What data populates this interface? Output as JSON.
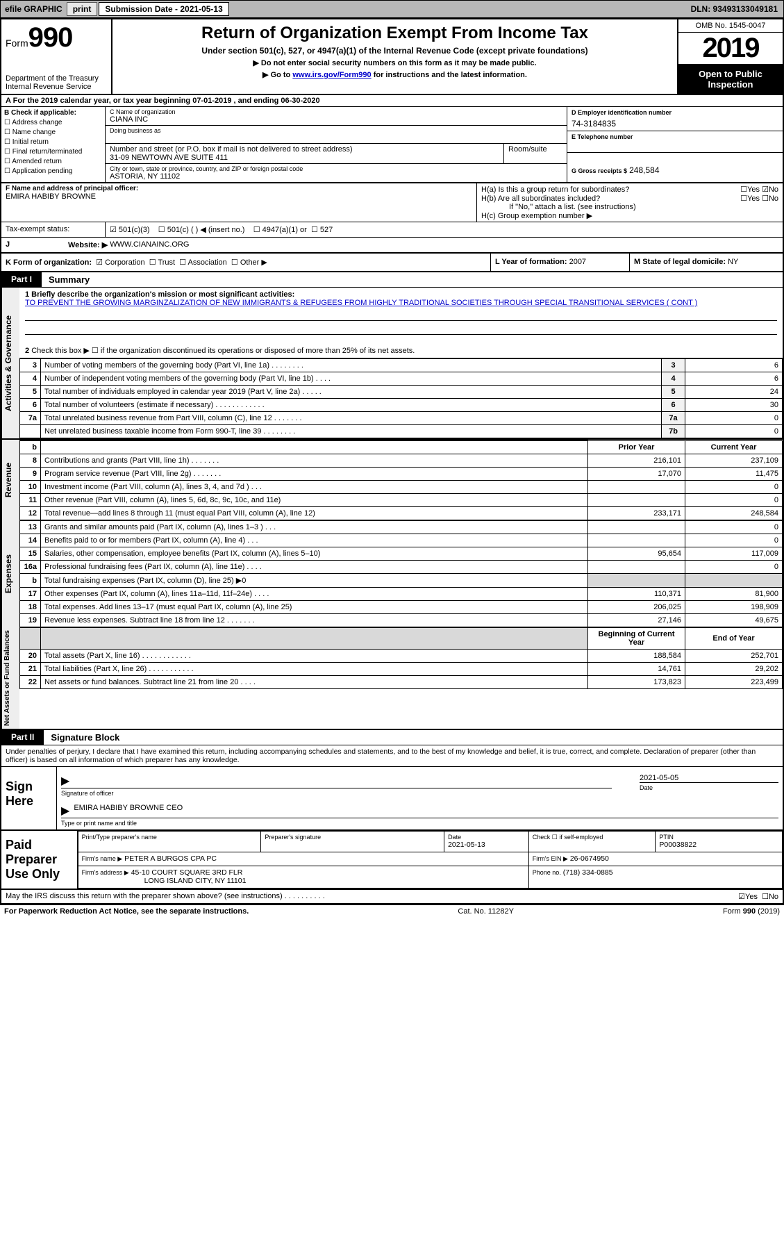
{
  "topbar": {
    "efile": "efile GRAPHIC",
    "print": "print",
    "sub_label": "Submission Date - 2021-05-13",
    "dln": "DLN: 93493133049181"
  },
  "header": {
    "form_word": "Form",
    "form_num": "990",
    "title": "Return of Organization Exempt From Income Tax",
    "subtitle": "Under section 501(c), 527, or 4947(a)(1) of the Internal Revenue Code (except private foundations)",
    "note1": "Do not enter social security numbers on this form as it may be made public.",
    "note2_pre": "Go to ",
    "note2_link": "www.irs.gov/Form990",
    "note2_post": " for instructions and the latest information.",
    "dept": "Department of the Treasury\nInternal Revenue Service",
    "omb": "OMB No. 1545-0047",
    "year": "2019",
    "open": "Open to Public Inspection"
  },
  "period": "For the 2019 calendar year, or tax year beginning 07-01-2019    , and ending 06-30-2020",
  "B": {
    "hdr": "B Check if applicable:",
    "items": [
      "Address change",
      "Name change",
      "Initial return",
      "Final return/terminated",
      "Amended return",
      "Application pending"
    ]
  },
  "C": {
    "name_lbl": "C Name of organization",
    "name": "CIANA INC",
    "dba_lbl": "Doing business as",
    "dba": "",
    "street_lbl": "Number and street (or P.O. box if mail is not delivered to street address)",
    "street": "31-09 NEWTOWN AVE SUITE 411",
    "suite_lbl": "Room/suite",
    "city_lbl": "City or town, state or province, country, and ZIP or foreign postal code",
    "city": "ASTORIA, NY  11102"
  },
  "D": {
    "lbl": "D Employer identification number",
    "val": "74-3184835"
  },
  "E": {
    "lbl": "E Telephone number",
    "val": ""
  },
  "G": {
    "lbl": "G Gross receipts $",
    "val": "248,584"
  },
  "F": {
    "lbl": "F  Name and address of principal officer:",
    "val": "EMIRA HABIBY BROWNE"
  },
  "H": {
    "a_lbl": "H(a)  Is this a group return for subordinates?",
    "a_yes": "Yes",
    "a_no": "No",
    "b_lbl": "H(b)  Are all subordinates included?",
    "b_note": "If \"No,\" attach a list. (see instructions)",
    "c_lbl": "H(c)  Group exemption number ▶"
  },
  "I": {
    "lbl": "Tax-exempt status:",
    "opts": [
      "501(c)(3)",
      "501(c) (   ) ◀ (insert no.)",
      "4947(a)(1) or",
      "527"
    ]
  },
  "J": {
    "lbl": "Website: ▶",
    "val": "WWW.CIANAINC.ORG"
  },
  "K": {
    "lbl": "K Form of organization:",
    "opts": [
      "Corporation",
      "Trust",
      "Association",
      "Other ▶"
    ]
  },
  "L": {
    "lbl": "L Year of formation:",
    "val": "2007"
  },
  "M": {
    "lbl": "M State of legal domicile:",
    "val": "NY"
  },
  "part1": {
    "num": "Part I",
    "title": "Summary",
    "q1_lbl": "1  Briefly describe the organization's mission or most significant activities:",
    "q1_txt": "TO PREVENT THE GROWING MARGINZALIZATION OF NEW IMMIGRANTS & REFUGEES FROM HIGHLY TRADITIONAL SOCIETIES THROUGH SPECIAL TRANSITIONAL SERVICES ( CONT )",
    "q2_lbl": "Check this box ▶ ☐  if the organization discontinued its operations or disposed of more than 25% of its net assets.",
    "vlabels": {
      "act": "Activities & Governance",
      "rev": "Revenue",
      "exp": "Expenses",
      "net": "Net Assets or Fund Balances"
    },
    "rows_top": [
      {
        "n": "3",
        "d": "Number of voting members of the governing body (Part VI, line 1a)   .    .    .    .    .    .    .    .",
        "b": "3",
        "v": "6"
      },
      {
        "n": "4",
        "d": "Number of independent voting members of the governing body (Part VI, line 1b)    .    .    .    .",
        "b": "4",
        "v": "6"
      },
      {
        "n": "5",
        "d": "Total number of individuals employed in calendar year 2019 (Part V, line 2a)    .    .    .    .    .",
        "b": "5",
        "v": "24"
      },
      {
        "n": "6",
        "d": "Total number of volunteers (estimate if necessary)     .    .    .    .    .    .    .    .    .    .    .    .",
        "b": "6",
        "v": "30"
      },
      {
        "n": "7a",
        "d": "Total unrelated business revenue from Part VIII, column (C), line 12    .    .    .    .    .    .    .",
        "b": "7a",
        "v": "0"
      },
      {
        "n": "",
        "d": "Net unrelated business taxable income from Form 990-T, line 39    .    .    .    .    .    .    .    .",
        "b": "7b",
        "v": "0"
      }
    ],
    "col_hdr_prior": "Prior Year",
    "col_hdr_curr": "Current Year",
    "rows_rev": [
      {
        "n": "8",
        "d": "Contributions and grants (Part VIII, line 1h)    .    .    .    .    .    .    .",
        "py": "216,101",
        "cy": "237,109"
      },
      {
        "n": "9",
        "d": "Program service revenue (Part VIII, line 2g)    .    .    .    .    .    .    .",
        "py": "17,070",
        "cy": "11,475"
      },
      {
        "n": "10",
        "d": "Investment income (Part VIII, column (A), lines 3, 4, and 7d )   .    .    .",
        "py": "",
        "cy": "0"
      },
      {
        "n": "11",
        "d": "Other revenue (Part VIII, column (A), lines 5, 6d, 8c, 9c, 10c, and 11e)",
        "py": "",
        "cy": "0"
      },
      {
        "n": "12",
        "d": "Total revenue—add lines 8 through 11 (must equal Part VIII, column (A), line 12)",
        "py": "233,171",
        "cy": "248,584"
      }
    ],
    "rows_exp": [
      {
        "n": "13",
        "d": "Grants and similar amounts paid (Part IX, column (A), lines 1–3 )   .    .    .",
        "py": "",
        "cy": "0"
      },
      {
        "n": "14",
        "d": "Benefits paid to or for members (Part IX, column (A), line 4)   .    .    .",
        "py": "",
        "cy": "0"
      },
      {
        "n": "15",
        "d": "Salaries, other compensation, employee benefits (Part IX, column (A), lines 5–10)",
        "py": "95,654",
        "cy": "117,009"
      },
      {
        "n": "16a",
        "d": "Professional fundraising fees (Part IX, column (A), line 11e)   .    .    .    .",
        "py": "",
        "cy": "0"
      },
      {
        "n": "b",
        "d": "Total fundraising expenses (Part IX, column (D), line 25) ▶0",
        "py": "__shade__",
        "cy": "__shade__"
      },
      {
        "n": "17",
        "d": "Other expenses (Part IX, column (A), lines 11a–11d, 11f–24e)   .    .    .    .",
        "py": "110,371",
        "cy": "81,900"
      },
      {
        "n": "18",
        "d": "Total expenses. Add lines 13–17 (must equal Part IX, column (A), line 25)",
        "py": "206,025",
        "cy": "198,909"
      },
      {
        "n": "19",
        "d": "Revenue less expenses. Subtract line 18 from line 12   .    .    .    .    .    .    .",
        "py": "27,146",
        "cy": "49,675"
      }
    ],
    "col_hdr_boy": "Beginning of Current Year",
    "col_hdr_eoy": "End of Year",
    "rows_net": [
      {
        "n": "20",
        "d": "Total assets (Part X, line 16)   .    .    .    .    .    .    .    .    .    .    .    .",
        "py": "188,584",
        "cy": "252,701"
      },
      {
        "n": "21",
        "d": "Total liabilities (Part X, line 26)   .    .    .    .    .    .    .    .    .    .    .",
        "py": "14,761",
        "cy": "29,202"
      },
      {
        "n": "22",
        "d": "Net assets or fund balances. Subtract line 21 from line 20   .    .    .    .",
        "py": "173,823",
        "cy": "223,499"
      }
    ]
  },
  "part2": {
    "num": "Part II",
    "title": "Signature Block",
    "decl": "Under penalties of perjury, I declare that I have examined this return, including accompanying schedules and statements, and to the best of my knowledge and belief, it is true, correct, and complete. Declaration of preparer (other than officer) is based on all information of which preparer has any knowledge.",
    "sign_here": "Sign Here",
    "sig_officer_cap": "Signature of officer",
    "sig_date": "2021-05-05",
    "sig_date_cap": "Date",
    "sig_name": "EMIRA HABIBY BROWNE  CEO",
    "sig_name_cap": "Type or print name and title",
    "paid_lbl": "Paid Preparer Use Only",
    "prep_name_lbl": "Print/Type preparer's name",
    "prep_name": "",
    "prep_sig_lbl": "Preparer's signature",
    "prep_date_lbl": "Date",
    "prep_date": "2021-05-13",
    "prep_self_lbl": "Check ☐ if self-employed",
    "ptin_lbl": "PTIN",
    "ptin": "P00038822",
    "firm_name_lbl": "Firm's name      ▶",
    "firm_name": "PETER A BURGOS CPA PC",
    "firm_ein_lbl": "Firm's EIN ▶",
    "firm_ein": "26-0674950",
    "firm_addr_lbl": "Firm's address ▶",
    "firm_addr1": "45-10 COURT SQUARE 3RD FLR",
    "firm_addr2": "LONG ISLAND CITY, NY  11101",
    "firm_phone_lbl": "Phone no.",
    "firm_phone": "(718) 334-0885",
    "discuss": "May the IRS discuss this return with the preparer shown above? (see instructions)   .    .    .    .    .    .    .    .    .    .",
    "discuss_yes": "Yes",
    "discuss_no": "No"
  },
  "footer": {
    "pra": "For Paperwork Reduction Act Notice, see the separate instructions.",
    "cat": "Cat. No. 11282Y",
    "form": "Form 990 (2019)"
  },
  "colors": {
    "link": "#0000cc",
    "black": "#000000",
    "shade": "#d9d9d9",
    "topbar": "#b8b8b8"
  }
}
